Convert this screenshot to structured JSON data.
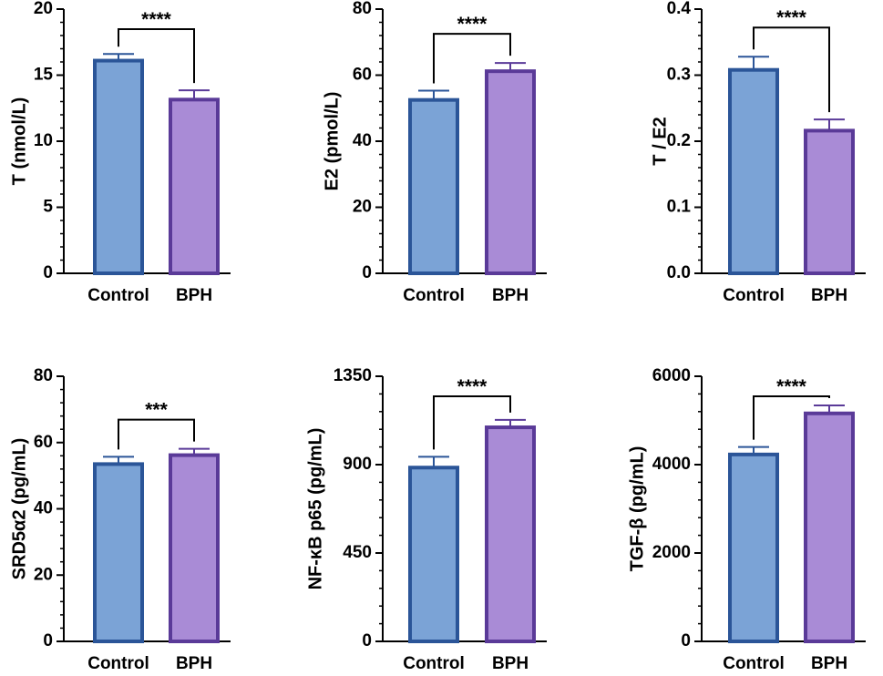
{
  "colors": {
    "control_fill": "#7BA3D6",
    "control_stroke": "#2B5598",
    "bph_fill": "#A98BD6",
    "bph_stroke": "#5A3A98",
    "axis": "#000000"
  },
  "chart_data": [
    {
      "type": "bar",
      "ylabel": "T (nmol/L)",
      "categories": [
        "Control",
        "BPH"
      ],
      "values": [
        16.1,
        13.15
      ],
      "errors": [
        0.5,
        0.7
      ],
      "ylim": [
        0,
        20
      ],
      "major_ticks": [
        0,
        5,
        10,
        15,
        20
      ],
      "tick_labels": [
        "0",
        "5",
        "10",
        "15",
        "20"
      ],
      "minor_step": 1,
      "significance": "****",
      "grid": false
    },
    {
      "type": "bar",
      "ylabel": "E2 (pmol/L)",
      "categories": [
        "Control",
        "BPH"
      ],
      "values": [
        52.5,
        61.2
      ],
      "errors": [
        2.8,
        2.5
      ],
      "ylim": [
        0,
        80
      ],
      "major_ticks": [
        0,
        20,
        40,
        60,
        80
      ],
      "tick_labels": [
        "0",
        "20",
        "40",
        "60",
        "80"
      ],
      "minor_step": 4,
      "significance": "****",
      "grid": false
    },
    {
      "type": "bar",
      "ylabel": "T / E2",
      "categories": [
        "Control",
        "BPH"
      ],
      "values": [
        0.308,
        0.216
      ],
      "errors": [
        0.02,
        0.017
      ],
      "ylim": [
        0,
        0.4
      ],
      "major_ticks": [
        0,
        0.1,
        0.2,
        0.3,
        0.4
      ],
      "tick_labels": [
        "0.0",
        "0.1",
        "0.2",
        "0.3",
        "0.4"
      ],
      "minor_step": 0.02,
      "significance": "****",
      "grid": false
    },
    {
      "type": "bar",
      "ylabel": "SRD5α2 (pg/mL)",
      "categories": [
        "Control",
        "BPH"
      ],
      "values": [
        53.5,
        56.2
      ],
      "errors": [
        2.2,
        1.9
      ],
      "ylim": [
        0,
        80
      ],
      "major_ticks": [
        0,
        20,
        40,
        60,
        80
      ],
      "tick_labels": [
        "0",
        "20",
        "40",
        "60",
        "80"
      ],
      "minor_step": 4,
      "significance": "***",
      "grid": false
    },
    {
      "type": "bar",
      "ylabel": "NF-κB p65 (pg/mL)",
      "categories": [
        "Control",
        "BPH"
      ],
      "values": [
        885,
        1090
      ],
      "errors": [
        55,
        38
      ],
      "ylim": [
        0,
        1350
      ],
      "major_ticks": [
        0,
        450,
        900,
        1350
      ],
      "tick_labels": [
        "0",
        "450",
        "900",
        "1350"
      ],
      "minor_step": 90,
      "significance": "****",
      "grid": false
    },
    {
      "type": "bar",
      "ylabel": "TGF-β (pg/mL)",
      "categories": [
        "Control",
        "BPH"
      ],
      "values": [
        4230,
        5160
      ],
      "errors": [
        170,
        180
      ],
      "ylim": [
        0,
        6000
      ],
      "major_ticks": [
        0,
        2000,
        4000,
        6000
      ],
      "tick_labels": [
        "0",
        "2000",
        "4000",
        "6000"
      ],
      "minor_step": 400,
      "significance": "****",
      "grid": false
    }
  ]
}
